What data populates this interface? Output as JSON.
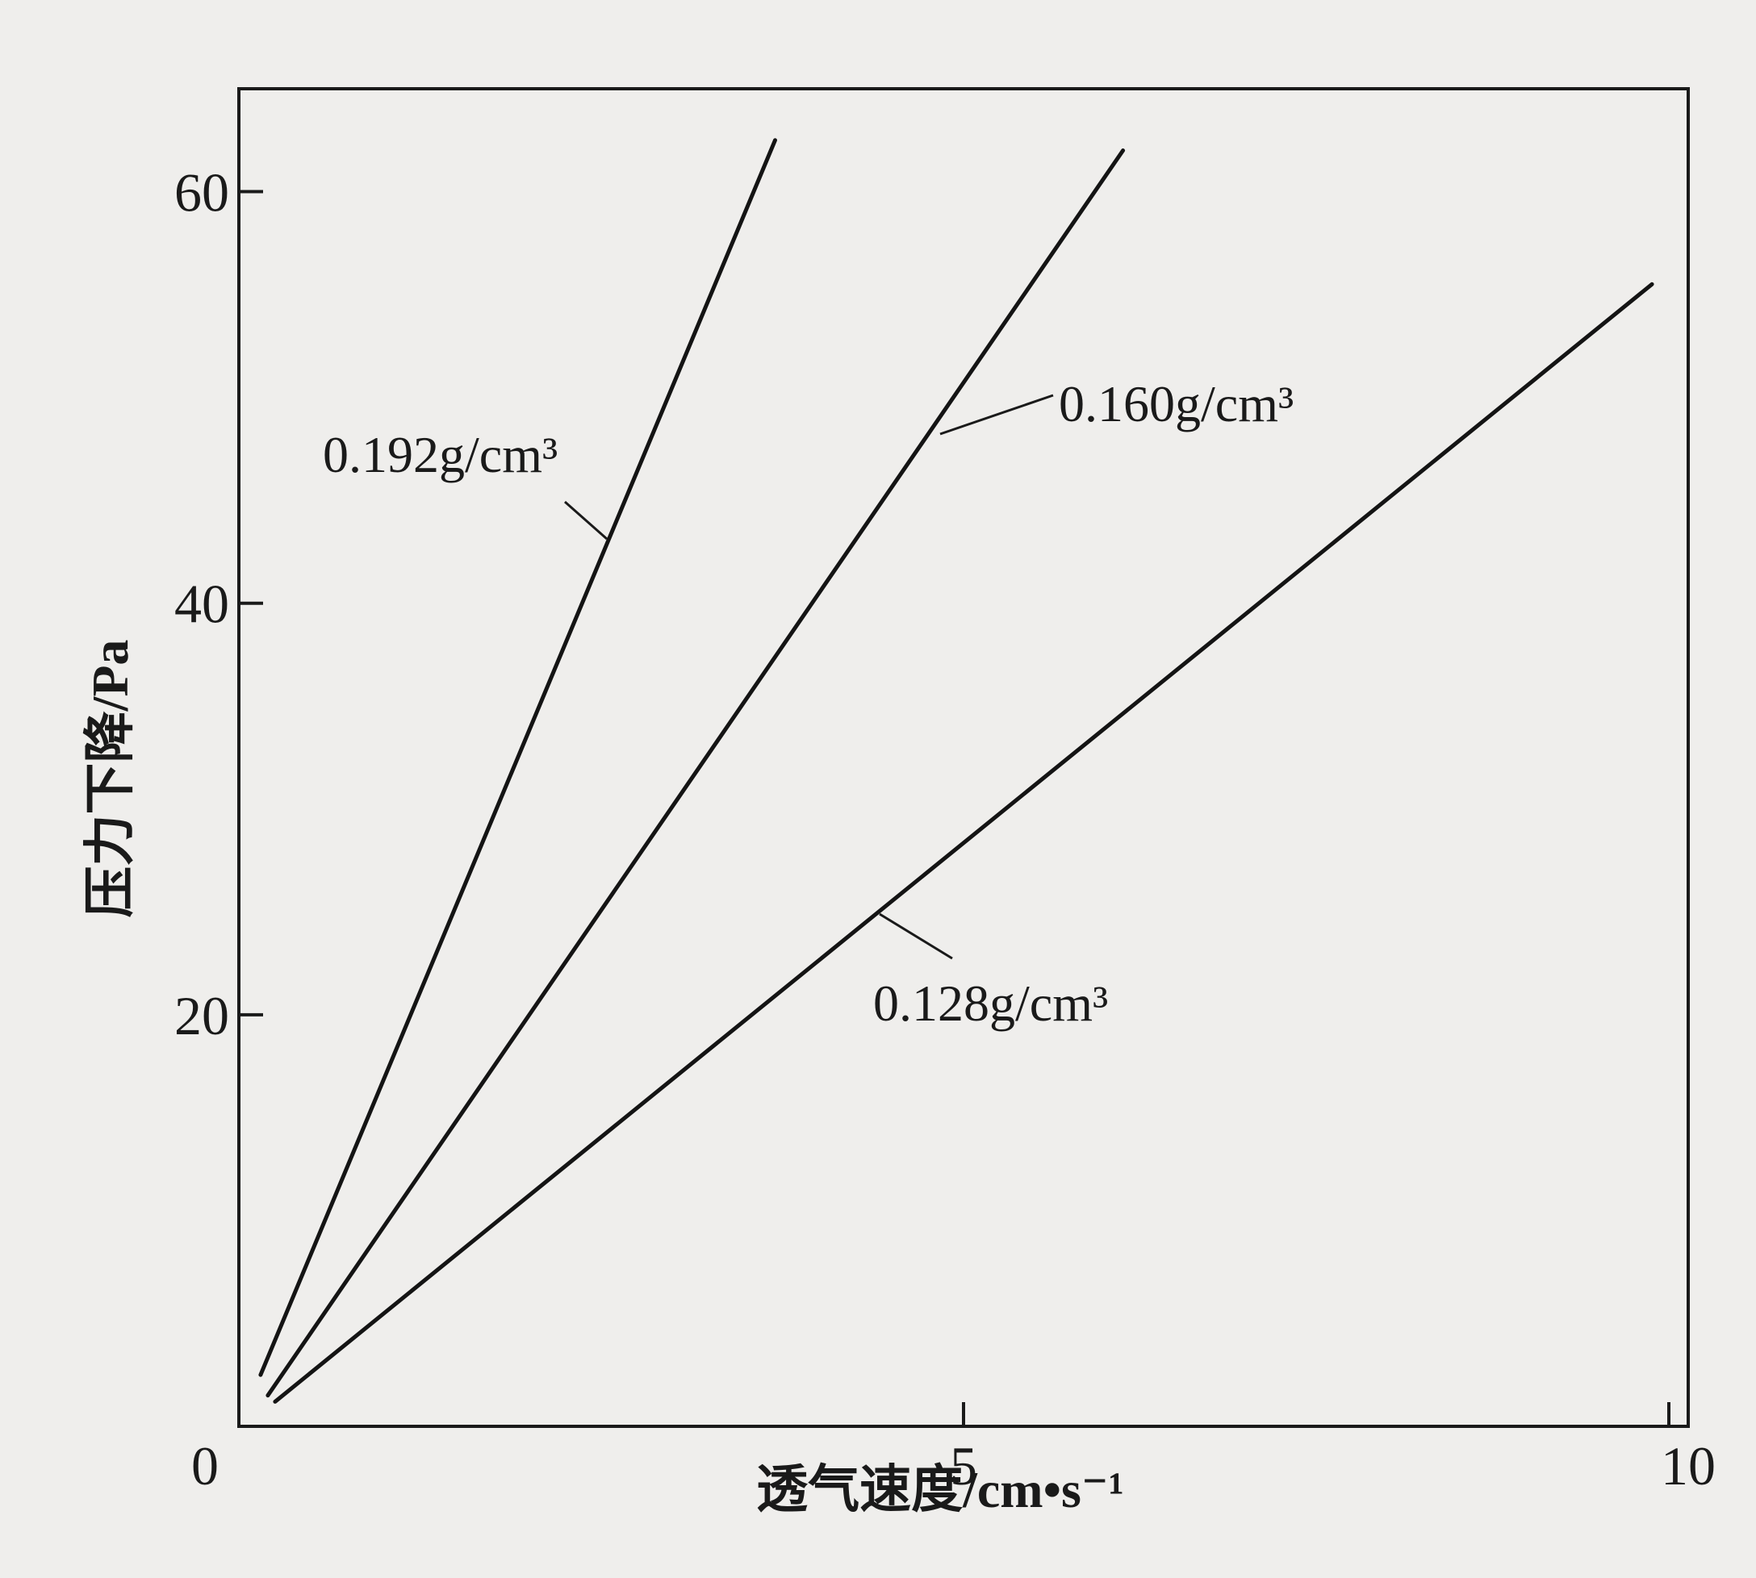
{
  "chart_data": {
    "type": "line",
    "xlabel": "透气速度/cm•s⁻¹",
    "ylabel": "压力下降/Pa",
    "xlim": [
      0,
      10
    ],
    "ylim": [
      0,
      65
    ],
    "x_ticks": [
      {
        "value": 0,
        "label": "0"
      },
      {
        "value": 5,
        "label": "5"
      },
      {
        "value": 10,
        "label": "10"
      }
    ],
    "y_ticks": [
      {
        "value": 20,
        "label": "20"
      },
      {
        "value": 40,
        "label": "40"
      },
      {
        "value": 60,
        "label": "60"
      }
    ],
    "grid": false,
    "legend": "none (direct labels)",
    "series": [
      {
        "name": "0.192g/cm³",
        "x": [
          0.15,
          3.7
        ],
        "y": [
          2.5,
          62.5
        ]
      },
      {
        "name": "0.160g/cm³",
        "x": [
          0.2,
          6.1
        ],
        "y": [
          1.5,
          62.0
        ]
      },
      {
        "name": "0.128g/cm³",
        "x": [
          0.25,
          9.75
        ],
        "y": [
          1.2,
          55.5
        ]
      }
    ]
  }
}
